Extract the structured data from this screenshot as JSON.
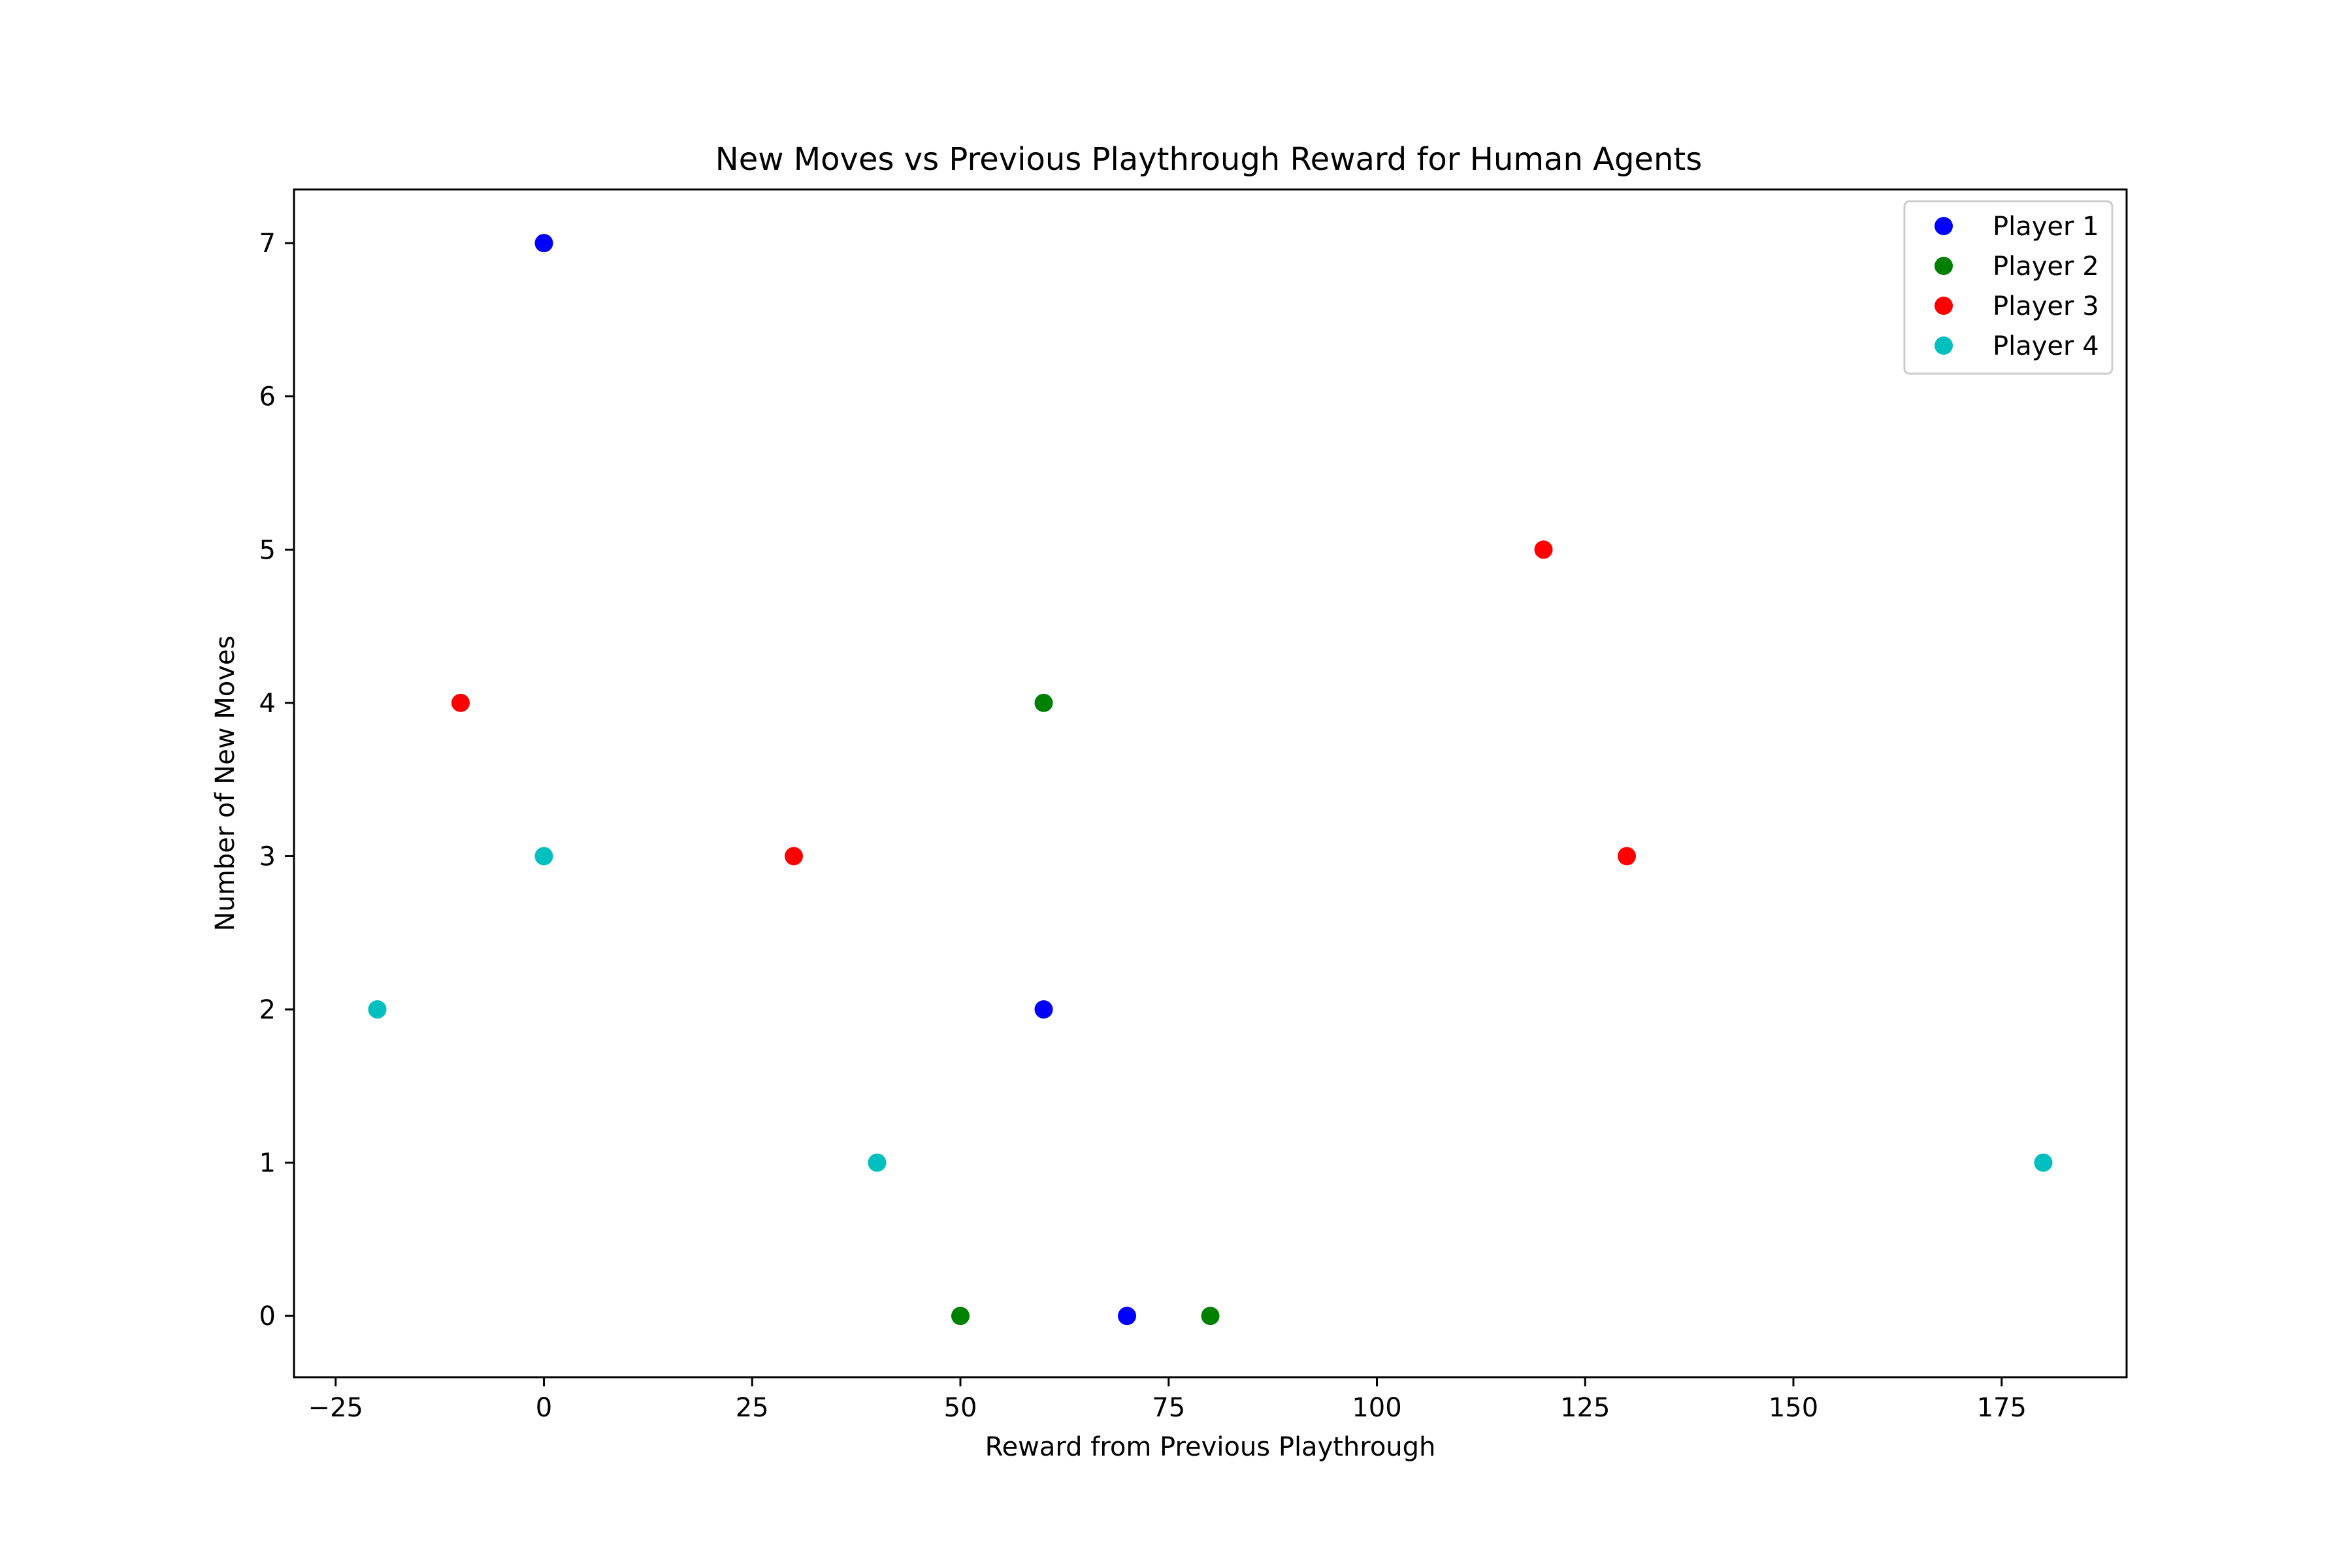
{
  "chart_data": {
    "type": "scatter",
    "title": "New Moves vs Previous Playthrough Reward for Human Agents",
    "xlabel": "Reward from Previous Playthrough",
    "ylabel": "Number of New Moves",
    "xlim": [
      -30,
      190
    ],
    "ylim": [
      -0.4,
      7.35
    ],
    "xticks": [
      -25,
      0,
      25,
      50,
      75,
      100,
      125,
      150,
      175
    ],
    "yticks": [
      0,
      1,
      2,
      3,
      4,
      5,
      6,
      7
    ],
    "grid": false,
    "legend_position": "top-right",
    "series": [
      {
        "name": "Player 1",
        "color": "#0000ff",
        "points": [
          [
            0,
            7
          ],
          [
            60,
            2
          ],
          [
            70,
            0
          ]
        ]
      },
      {
        "name": "Player 2",
        "color": "#008000",
        "points": [
          [
            60,
            4
          ],
          [
            50,
            0
          ],
          [
            80,
            0
          ]
        ]
      },
      {
        "name": "Player 3",
        "color": "#ff0000",
        "points": [
          [
            -10,
            4
          ],
          [
            30,
            3
          ],
          [
            120,
            5
          ],
          [
            130,
            3
          ]
        ]
      },
      {
        "name": "Player 4",
        "color": "#00bfbf",
        "points": [
          [
            0,
            3
          ],
          [
            -20,
            2
          ],
          [
            40,
            1
          ],
          [
            180,
            1
          ]
        ]
      }
    ]
  }
}
